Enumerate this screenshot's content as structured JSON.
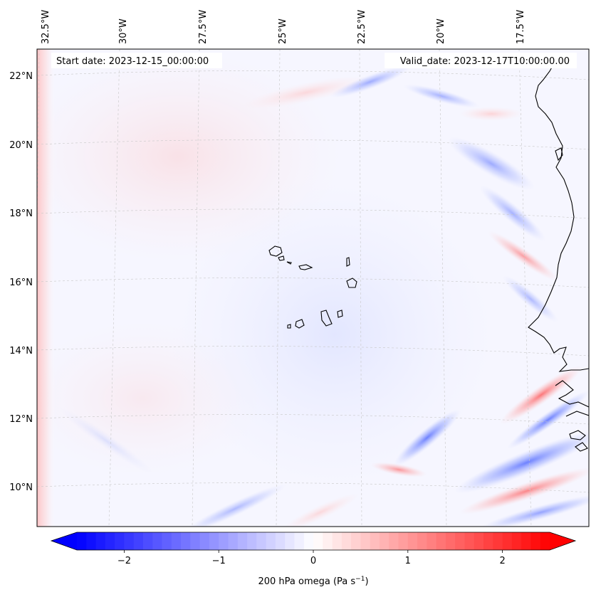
{
  "header": {
    "start_date": "Start date: 2023-12-15_00:00:00",
    "valid_date": "Valid_date: 2023-12-17T10:00:00.00"
  },
  "map": {
    "longitude_labels": [
      "32.5°W",
      "30°W",
      "27.5°W",
      "25°W",
      "22.5°W",
      "20°W",
      "17.5°W"
    ],
    "latitude_labels": [
      "22°N",
      "20°N",
      "18°N",
      "16°N",
      "14°N",
      "12°N",
      "10°N"
    ],
    "field": "200 hPa omega",
    "units": "Pa s^-1"
  },
  "colorbar": {
    "ticks": [
      "−2",
      "−1",
      "0",
      "1",
      "2"
    ],
    "tick_values": [
      -2,
      -1,
      0,
      1,
      2
    ],
    "range": [
      -2.5,
      2.5
    ],
    "label_text": "200 hPa omega (Pa s",
    "label_exp": "−1",
    "label_close": ")",
    "low_color": "#0000ff",
    "mid_color": "#ffffff",
    "high_color": "#ff0000"
  }
}
